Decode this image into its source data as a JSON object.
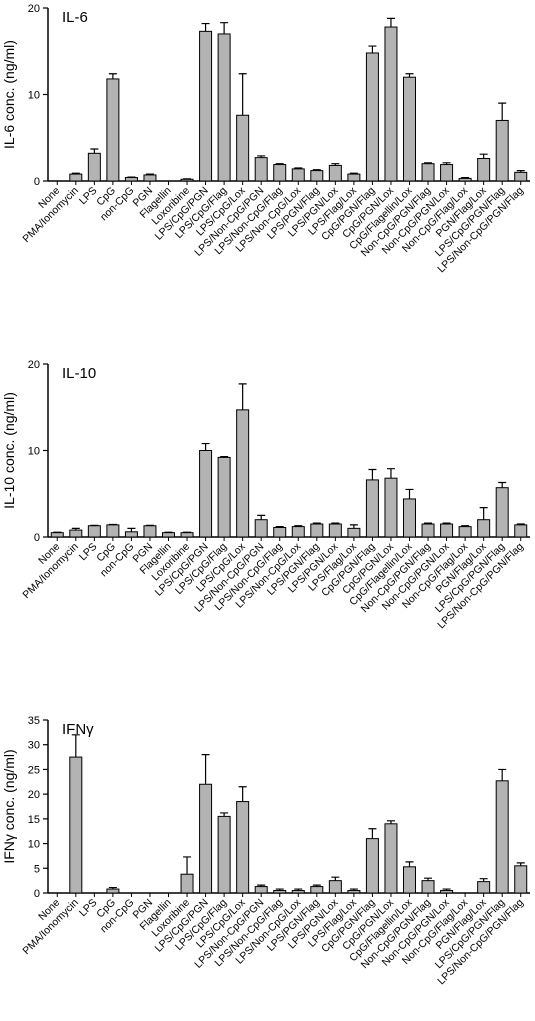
{
  "chart_data": [
    {
      "type": "bar",
      "title": "IL-6",
      "ylabel": "IL-6 conc. (ng/ml)",
      "color": "#b3b3b3",
      "categories": [
        "None",
        "PMA/Ionomycin",
        "LPS",
        "CpG",
        "non-CpG",
        "PGN",
        "Flagellin",
        "Loxoribine",
        "LPS/CpG/PGN",
        "LPS/CpG/Flag",
        "LPS/CpG/Lox",
        "LPS/Non-CpG/PGN",
        "LPS/Non-CpG/Flag",
        "LPS/Non-CpG/Lox",
        "LPS/PGN/Flag",
        "LPS/PGN/Lox",
        "LPS/Flag/Lox",
        "CpG/PGN/Flag",
        "CpG/PGN/Lox",
        "CpG/Flagellin/Lox",
        "Non-CpG/PGN/Flag",
        "Non-CpG/PGN/Lox",
        "Non-CpG/Flag/Lox",
        "PGN/Flag/Lox",
        "LPS/CpG/PGN/Flag",
        "LPS/Non-CpG/PGN/Flag"
      ],
      "values": [
        0,
        0.8,
        3.2,
        11.8,
        0.4,
        0.7,
        0,
        0.2,
        17.3,
        17.0,
        7.6,
        2.7,
        1.9,
        1.4,
        1.2,
        1.8,
        0.8,
        14.8,
        17.8,
        12.0,
        2.0,
        1.9,
        0.3,
        2.6,
        7.0,
        1.0
      ],
      "errors": [
        0,
        0.1,
        0.5,
        0.6,
        0.05,
        0.1,
        0,
        0.05,
        0.9,
        1.3,
        4.8,
        0.2,
        0.1,
        0.1,
        0.1,
        0.2,
        0.1,
        0.8,
        1.0,
        0.4,
        0.1,
        0.2,
        0.1,
        0.5,
        2.0,
        0.2
      ],
      "ylim": [
        0,
        20
      ],
      "yticks": [
        0,
        10,
        20
      ]
    },
    {
      "type": "bar",
      "title": "IL-10",
      "ylabel": "IL-10 conc. (ng/ml)",
      "color": "#b3b3b3",
      "categories": [
        "None",
        "PMA/Ionomycin",
        "LPS",
        "CpG",
        "non-CpG",
        "PGN",
        "Flagellin",
        "Loxoribine",
        "LPS/CpG/PGN",
        "LPS/CpG/Flag",
        "LPS/CpG/Lox",
        "LPS/Non-CpG/PGN",
        "LPS/Non-CpG/Flag",
        "LPS/Non-CpG/Lox",
        "LPS/PGN/Flag",
        "LPS/PGN/Lox",
        "LPS/Flag/Lox",
        "CpG/PGN/Flag",
        "CpG/PGN/Lox",
        "CpG/Flagellin/Lox",
        "Non-CpG/PGN/Flag",
        "Non-CpG/PGN/Lox",
        "Non-CpG/Flag/Lox",
        "PGN/Flag/Lox",
        "LPS/CpG/PGN/Flag",
        "LPS/Non-CpG/PGN/Flag"
      ],
      "values": [
        0.5,
        0.8,
        1.3,
        1.4,
        0.6,
        1.3,
        0.5,
        0.5,
        10.0,
        9.2,
        14.7,
        2.0,
        1.1,
        1.2,
        1.5,
        1.5,
        1.0,
        6.6,
        6.8,
        4.4,
        1.5,
        1.5,
        1.2,
        2.0,
        5.7,
        1.4
      ],
      "errors": [
        0.05,
        0.2,
        0.05,
        0.05,
        0.4,
        0.05,
        0.05,
        0.05,
        0.8,
        0.1,
        3.0,
        0.5,
        0.1,
        0.1,
        0.1,
        0.1,
        0.4,
        1.2,
        1.1,
        1.1,
        0.1,
        0.1,
        0.1,
        1.4,
        0.6,
        0.1
      ],
      "ylim": [
        0,
        20
      ],
      "yticks": [
        0,
        10,
        20
      ]
    },
    {
      "type": "bar",
      "title": "IFNγ",
      "ylabel": "IFNγ conc. (ng/ml)",
      "color": "#b3b3b3",
      "categories": [
        "None",
        "PMA/Ionomycin",
        "LPS",
        "CpG",
        "non-CpG",
        "PGN",
        "Flagellin",
        "Loxoribine",
        "LPS/CpG/PGN",
        "LPS/CpG/Flag",
        "LPS/CpG/Lox",
        "LPS/Non-CpG/PGN",
        "LPS/Non-CpG/Flag",
        "LPS/Non-CpG/Lox",
        "LPS/PGN/Flag",
        "LPS/PGN/Lox",
        "LPS/Flag/Lox",
        "CpG/PGN/Flag",
        "CpG/PGN/Lox",
        "CpG/Flagellin/Lox",
        "Non-CpG/PGN/Flag",
        "Non-CpG/PGN/Lox",
        "Non-CpG/Flag/Lox",
        "PGN/Flag/Lox",
        "LPS/CpG/PGN/Flag",
        "LPS/Non-CpG/PGN/Flag"
      ],
      "values": [
        0,
        27.5,
        0,
        0.8,
        0,
        0,
        0,
        3.8,
        22.0,
        15.5,
        18.5,
        1.3,
        0.5,
        0.5,
        1.3,
        2.5,
        0.5,
        11.0,
        14.0,
        5.3,
        2.5,
        0.5,
        0,
        2.3,
        22.7,
        5.5
      ],
      "errors": [
        0,
        4.5,
        0,
        0.3,
        0,
        0,
        0,
        3.5,
        6.0,
        0.7,
        3.0,
        0.3,
        0.3,
        0.3,
        0.3,
        0.7,
        0.3,
        2.0,
        0.6,
        1.0,
        0.5,
        0.3,
        0,
        0.6,
        2.3,
        0.6
      ],
      "ylim": [
        0,
        35
      ],
      "yticks": [
        0,
        5,
        10,
        15,
        20,
        25,
        30,
        35
      ]
    }
  ]
}
